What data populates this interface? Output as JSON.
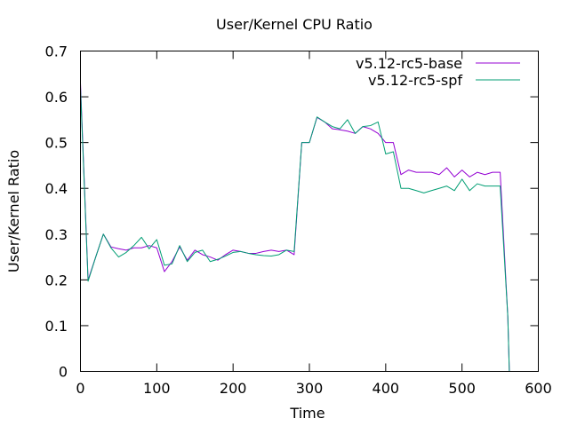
{
  "chart_data": {
    "type": "line",
    "title": "User/Kernel CPU Ratio",
    "xlabel": "Time",
    "ylabel": "User/Kernel Ratio",
    "xlim": [
      0,
      600
    ],
    "ylim": [
      0,
      0.7
    ],
    "xticks": [
      0,
      100,
      200,
      300,
      400,
      500,
      600
    ],
    "xtick_labels": [
      "0",
      "100",
      "200",
      "300",
      "400",
      "500",
      "600"
    ],
    "yticks": [
      0,
      0.1,
      0.2,
      0.3,
      0.4,
      0.5,
      0.6,
      0.7
    ],
    "ytick_labels": [
      "0",
      "0.1",
      "0.2",
      "0.3",
      "0.4",
      "0.5",
      "0.6",
      "0.7"
    ],
    "grid": false,
    "legend_position": "top-right",
    "series": [
      {
        "name": "v5.12-rc5-base",
        "color": "#9400d3",
        "x": [
          0,
          10,
          20,
          30,
          40,
          50,
          60,
          70,
          80,
          90,
          100,
          110,
          120,
          130,
          140,
          150,
          160,
          170,
          180,
          190,
          200,
          210,
          220,
          230,
          240,
          250,
          260,
          270,
          280,
          290,
          300,
          310,
          320,
          330,
          340,
          350,
          360,
          370,
          380,
          390,
          400,
          410,
          420,
          430,
          440,
          450,
          460,
          470,
          480,
          490,
          500,
          510,
          520,
          530,
          540,
          550,
          560,
          562
        ],
        "y": [
          0.63,
          0.2,
          0.25,
          0.3,
          0.272,
          0.268,
          0.265,
          0.27,
          0.27,
          0.275,
          0.27,
          0.218,
          0.24,
          0.272,
          0.243,
          0.265,
          0.255,
          0.25,
          0.243,
          0.255,
          0.265,
          0.262,
          0.258,
          0.258,
          0.262,
          0.265,
          0.262,
          0.265,
          0.255,
          0.5,
          0.5,
          0.555,
          0.545,
          0.53,
          0.528,
          0.525,
          0.52,
          0.535,
          0.53,
          0.52,
          0.5,
          0.5,
          0.43,
          0.44,
          0.435,
          0.435,
          0.435,
          0.43,
          0.445,
          0.425,
          0.44,
          0.425,
          0.435,
          0.43,
          0.435,
          0.435,
          0.12,
          0.0
        ]
      },
      {
        "name": "v5.12-rc5-spf",
        "color": "#009e73",
        "x": [
          0,
          10,
          20,
          30,
          40,
          50,
          60,
          70,
          80,
          90,
          100,
          110,
          120,
          130,
          140,
          150,
          160,
          170,
          180,
          190,
          200,
          210,
          220,
          230,
          240,
          250,
          260,
          270,
          280,
          290,
          300,
          310,
          320,
          330,
          340,
          350,
          360,
          370,
          380,
          390,
          400,
          410,
          420,
          430,
          440,
          450,
          460,
          470,
          480,
          490,
          500,
          510,
          520,
          530,
          540,
          550,
          560,
          562
        ],
        "y": [
          0.62,
          0.197,
          0.25,
          0.3,
          0.27,
          0.25,
          0.26,
          0.275,
          0.293,
          0.268,
          0.288,
          0.232,
          0.235,
          0.275,
          0.24,
          0.26,
          0.265,
          0.24,
          0.245,
          0.252,
          0.26,
          0.262,
          0.258,
          0.255,
          0.253,
          0.252,
          0.255,
          0.265,
          0.262,
          0.5,
          0.5,
          0.556,
          0.545,
          0.535,
          0.53,
          0.55,
          0.52,
          0.535,
          0.537,
          0.545,
          0.475,
          0.48,
          0.4,
          0.4,
          0.395,
          0.39,
          0.395,
          0.4,
          0.405,
          0.395,
          0.42,
          0.395,
          0.41,
          0.405,
          0.405,
          0.405,
          0.12,
          0.0
        ]
      }
    ]
  }
}
